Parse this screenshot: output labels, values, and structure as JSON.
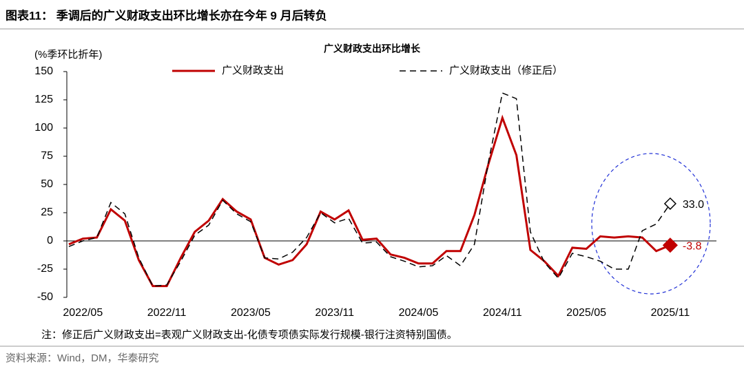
{
  "header": {
    "title": "图表11：  季调后的广义财政支出环比增长亦在今年 9 月后转负"
  },
  "chart_data": {
    "type": "line",
    "title": "广义财政支出环比增长",
    "y_axis_label": "(%季环比折年)",
    "categories": [
      null,
      "2022/05",
      null,
      null,
      null,
      null,
      null,
      "2022/11",
      null,
      null,
      null,
      null,
      null,
      "2023/05",
      null,
      null,
      null,
      null,
      null,
      "2023/11",
      null,
      null,
      null,
      null,
      null,
      "2024/05",
      null,
      null,
      null,
      null,
      null,
      "2024/11",
      null,
      null,
      null,
      null,
      null,
      "2025/05",
      null,
      null,
      null,
      null,
      null,
      "2025/11"
    ],
    "series": [
      {
        "name": "广义财政支出",
        "color": "#c00000",
        "dash": false,
        "marker": "filled-diamond",
        "values": [
          -3,
          2,
          3,
          28,
          18,
          -17,
          -40,
          -40,
          -15,
          8,
          18,
          37,
          26,
          19,
          -15,
          -21,
          -17,
          -3,
          26,
          19,
          27,
          1,
          2,
          -12,
          -15,
          -20,
          -20,
          -9,
          -9,
          23,
          68,
          109,
          76,
          -8,
          -18,
          -31,
          -6,
          -7,
          4,
          3,
          4,
          3,
          -9,
          -3.8
        ],
        "value_labels": [
          null,
          null,
          null,
          null,
          null,
          null,
          null,
          null,
          null,
          null,
          null,
          null,
          null,
          null,
          null,
          null,
          null,
          null,
          null,
          null,
          null,
          null,
          null,
          null,
          null,
          null,
          null,
          null,
          null,
          null,
          null,
          null,
          null,
          null,
          null,
          null,
          null,
          null,
          null,
          null,
          null,
          null,
          null,
          "-3.8"
        ]
      },
      {
        "name": "广义财政支出（修正后）",
        "color": "#000000",
        "dash": true,
        "marker": "hollow-diamond",
        "values": [
          -5,
          0,
          3,
          34,
          24,
          -15,
          -40,
          -39,
          -18,
          5,
          14,
          36,
          24,
          17,
          -15,
          -16,
          -10,
          3,
          25,
          16,
          20,
          -2,
          -1,
          -14,
          -18,
          -23,
          -22,
          -13,
          -22,
          -3,
          70,
          131,
          126,
          8,
          -19,
          -33,
          -11,
          -14,
          -18,
          -25,
          -25,
          9,
          15,
          33
        ],
        "value_labels": [
          null,
          null,
          null,
          null,
          null,
          null,
          null,
          null,
          null,
          null,
          null,
          null,
          null,
          null,
          null,
          null,
          null,
          null,
          null,
          null,
          null,
          null,
          null,
          null,
          null,
          null,
          null,
          null,
          null,
          null,
          null,
          null,
          null,
          null,
          null,
          null,
          null,
          null,
          null,
          null,
          null,
          null,
          null,
          "33.0"
        ]
      }
    ],
    "ylim": [
      -50,
      150
    ],
    "yticks": [
      -50,
      -25,
      0,
      25,
      50,
      75,
      100,
      125,
      150
    ],
    "note": "注：修正后广义财政支出=表观广义财政支出-化债专项债实际发行规模-银行注资特别国债。"
  },
  "source": "资料来源：Wind，DM，华泰研究"
}
